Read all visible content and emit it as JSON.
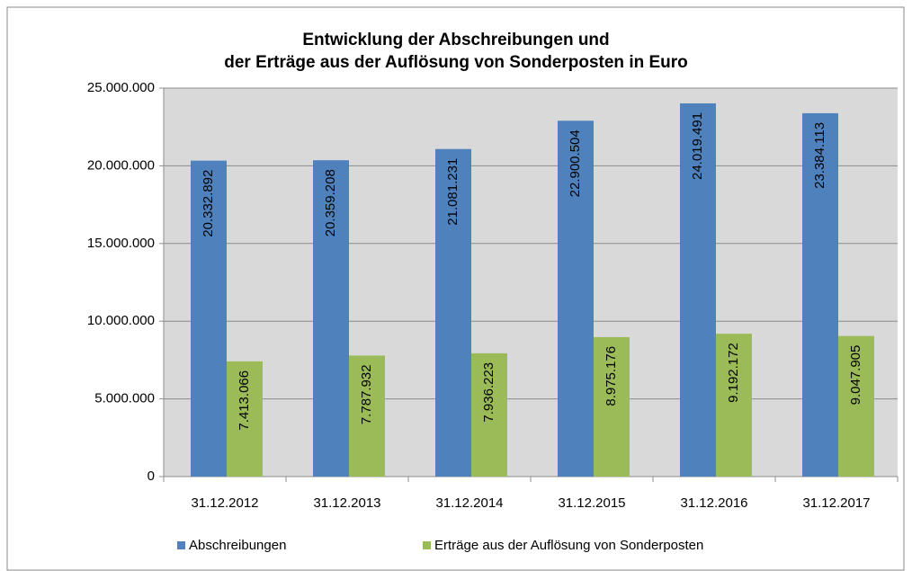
{
  "chart_data": {
    "type": "bar",
    "title": [
      "Entwicklung der Abschreibungen und",
      "der Erträge aus der Auflösung von Sonderposten in Euro"
    ],
    "categories": [
      "31.12.2012",
      "31.12.2013",
      "31.12.2014",
      "31.12.2015",
      "31.12.2016",
      "31.12.2017"
    ],
    "series": [
      {
        "name": "Abschreibungen",
        "color": "#4f81bd",
        "values": [
          20332892,
          20359208,
          21081231,
          22900504,
          24019491,
          23384113
        ],
        "value_labels": [
          "20.332.892",
          "20.359.208",
          "21.081.231",
          "22.900.504",
          "24.019.491",
          "23.384.113"
        ]
      },
      {
        "name": "Erträge aus der Auflösung von Sonderposten",
        "color": "#9bbb59",
        "values": [
          7413066,
          7787932,
          7936223,
          8975176,
          9192172,
          9047905
        ],
        "value_labels": [
          "7.413.066",
          "7.787.932",
          "7.936.223",
          "8.975.176",
          "9.192.172",
          "9.047.905"
        ]
      }
    ],
    "ylim": [
      0,
      25000000
    ],
    "yticks": [
      0,
      {
        "value": 5000000,
        "label": "5.000.000"
      },
      {
        "value": 10000000,
        "label": "10.000.000"
      },
      {
        "value": 15000000,
        "label": "15.000.000"
      },
      {
        "value": 20000000,
        "label": "20.000.000"
      },
      {
        "value": 25000000,
        "label": "25.000.000"
      }
    ],
    "grid": true,
    "legend": "bottom"
  }
}
